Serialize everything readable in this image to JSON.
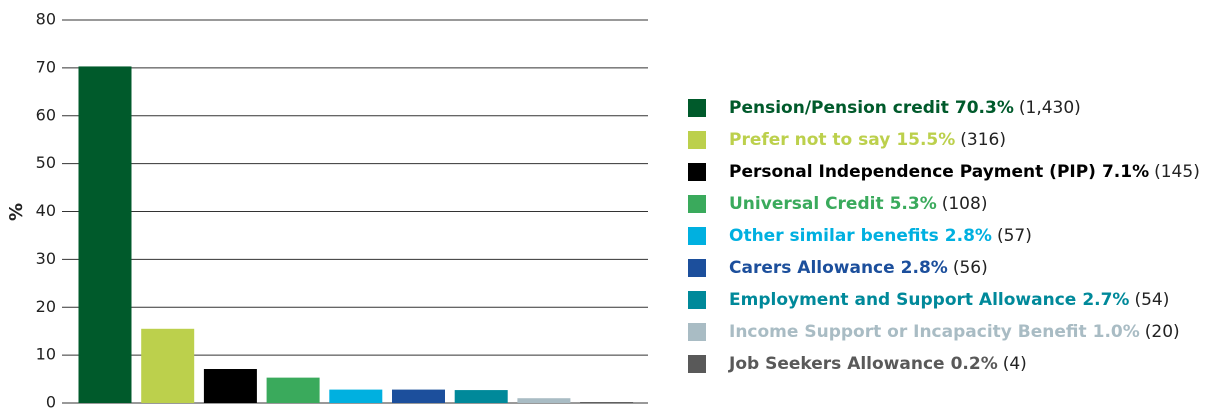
{
  "chart_data": {
    "type": "bar",
    "y_label": "%",
    "categories": [
      "Pension/Pension credit",
      "Prefer not to say",
      "Personal Independence Payment (PIP)",
      "Universal Credit",
      "Other similar benefits",
      "Carers Allowance",
      "Employment and Support Allowance",
      "Income Support or Incapacity Benefit",
      "Job Seekers Allowance"
    ],
    "values": [
      70.3,
      15.5,
      7.1,
      5.3,
      2.8,
      2.8,
      2.7,
      1.0,
      0.2
    ],
    "value_labels": [
      "70.3%",
      "15.5%",
      "7.1%",
      "5.3%",
      "2.8%",
      "2.8%",
      "2.7%",
      "1.0%",
      "0.2%"
    ],
    "count_labels": [
      "(1,430)",
      "(316)",
      "(145)",
      "(108)",
      "(57)",
      "(56)",
      "(54)",
      "(20)",
      "(4)"
    ],
    "colors": [
      "#005a2b",
      "#bcd04c",
      "#000000",
      "#3aaa5c",
      "#00b0e0",
      "#1c4f9c",
      "#00899a",
      "#a9bcc4",
      "#595959"
    ],
    "ylim": [
      0,
      80
    ],
    "yticks": [
      0,
      10,
      20,
      30,
      40,
      50,
      60,
      70,
      80
    ],
    "grid": true,
    "legend": "right"
  }
}
